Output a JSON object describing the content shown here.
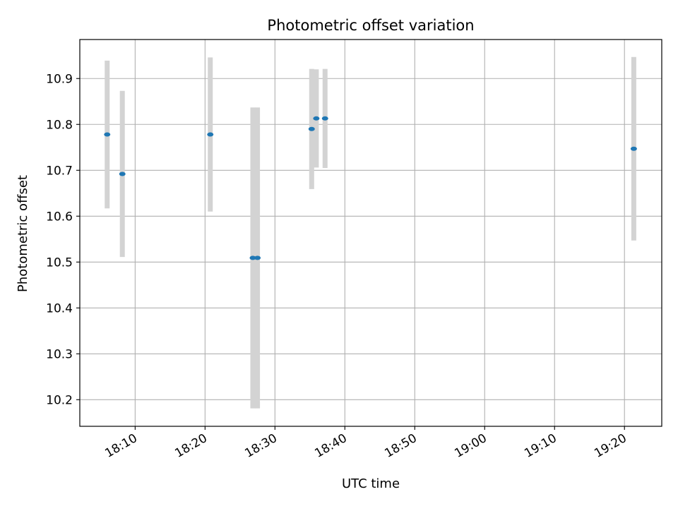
{
  "chart_data": {
    "type": "scatter",
    "title": "Photometric offset variation",
    "xlabel": "UTC time",
    "ylabel": "Photometric offset",
    "xlim": [
      "18:02:05",
      "19:25:20"
    ],
    "ylim": [
      10.142,
      10.985
    ],
    "grid": true,
    "x_ticks": [
      "18:10",
      "18:20",
      "18:30",
      "18:40",
      "18:50",
      "19:00",
      "19:10",
      "19:20"
    ],
    "y_ticks": [
      "10.2",
      "10.3",
      "10.4",
      "10.5",
      "10.6",
      "10.7",
      "10.8",
      "10.9"
    ],
    "point_color": "#1f77b4",
    "errorbar_color": "#d3d3d3",
    "points": [
      {
        "t": "18:06:00",
        "y": 10.778,
        "yerr": 0.161
      },
      {
        "t": "18:08:10",
        "y": 10.692,
        "yerr": 0.181
      },
      {
        "t": "18:20:45",
        "y": 10.778,
        "yerr": 0.168
      },
      {
        "t": "18:26:50",
        "y": 10.509,
        "yerr": 0.328
      },
      {
        "t": "18:27:30",
        "y": 10.509,
        "yerr": 0.328
      },
      {
        "t": "18:35:15",
        "y": 10.79,
        "yerr": 0.131
      },
      {
        "t": "18:35:55",
        "y": 10.813,
        "yerr": 0.107
      },
      {
        "t": "18:37:10",
        "y": 10.813,
        "yerr": 0.108
      },
      {
        "t": "19:21:20",
        "y": 10.747,
        "yerr": 0.2
      }
    ]
  }
}
